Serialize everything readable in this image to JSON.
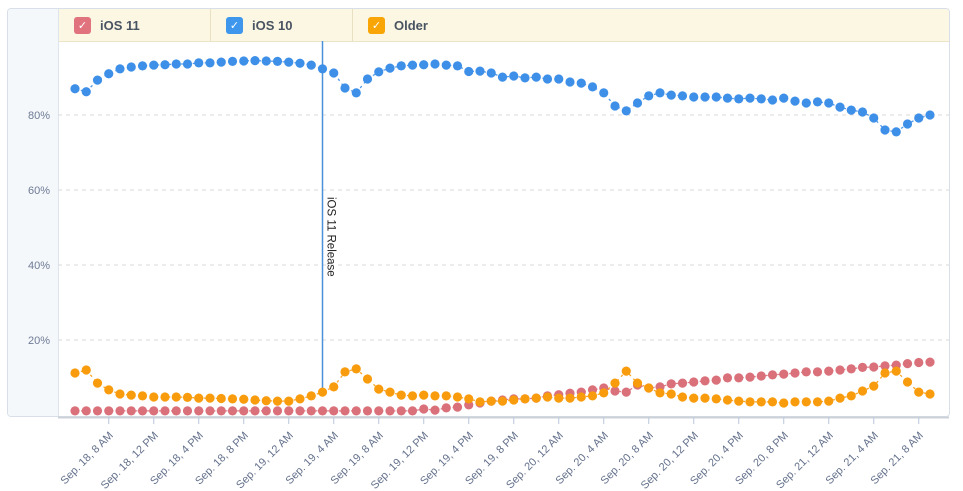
{
  "legend": {
    "items": [
      {
        "label": "iOS 11",
        "color": "#e1737e",
        "checked": true
      },
      {
        "label": "iOS 10",
        "color": "#3e97ed",
        "checked": true
      },
      {
        "label": "Older",
        "color": "#f8a505",
        "checked": true
      }
    ],
    "checkmark": "✓"
  },
  "chart_data": {
    "type": "line",
    "title": "",
    "xlabel": "",
    "ylabel": "",
    "ylim": [
      0,
      100
    ],
    "grid": true,
    "legend_position": "top",
    "point_interval_hours": 1,
    "n_points": 77,
    "yticks": {
      "values": [
        20,
        40,
        60,
        80
      ],
      "labels": [
        "20%",
        "40%",
        "60%",
        "80%"
      ]
    },
    "x_tick_indices": [
      3,
      7,
      11,
      15,
      19,
      23,
      27,
      31,
      35,
      39,
      43,
      47,
      51,
      55,
      59,
      63,
      67,
      71,
      75
    ],
    "x_tick_labels": [
      "Sep. 18, 8 AM",
      "Sep. 18, 12 PM",
      "Sep. 18, 4 PM",
      "Sep. 18, 8 PM",
      "Sep. 19, 12 AM",
      "Sep. 19, 4 AM",
      "Sep. 19, 8 AM",
      "Sep. 19, 12 PM",
      "Sep. 19, 4 PM",
      "Sep. 19, 8 PM",
      "Sep. 20, 12 AM",
      "Sep. 20, 4 AM",
      "Sep. 20, 8 AM",
      "Sep. 20, 12 PM",
      "Sep. 20, 4 PM",
      "Sep. 20, 8 PM",
      "Sep. 21, 12 AM",
      "Sep. 21, 4 AM",
      "Sep. 21, 8 AM"
    ],
    "annotation": {
      "label": "iOS 11 Release",
      "x_index": 22,
      "color": "#4a90da"
    },
    "series": [
      {
        "name": "iOS 11",
        "color": "#d9707a",
        "values": [
          1.1,
          1.1,
          1.1,
          1.1,
          1.1,
          1.1,
          1.1,
          1.1,
          1.1,
          1.1,
          1.1,
          1.1,
          1.1,
          1.1,
          1.1,
          1.1,
          1.1,
          1.1,
          1.1,
          1.1,
          1.1,
          1.1,
          1.1,
          1.1,
          1.1,
          1.1,
          1.1,
          1.1,
          1.1,
          1.1,
          1.1,
          1.6,
          1.3,
          1.9,
          2.1,
          2.7,
          3.2,
          3.7,
          4.0,
          4.3,
          4.3,
          4.5,
          5.1,
          5.4,
          5.8,
          6.1,
          6.7,
          7.2,
          6.4,
          6.1,
          8.0,
          7.2,
          7.5,
          8.3,
          8.5,
          8.8,
          9.1,
          9.3,
          9.9,
          9.9,
          10.1,
          10.4,
          10.7,
          10.9,
          11.2,
          11.5,
          11.5,
          11.7,
          12.0,
          12.3,
          12.7,
          12.8,
          13.1,
          13.3,
          13.7,
          14.0,
          14.1
        ]
      },
      {
        "name": "iOS 10",
        "color": "#3e8fe8",
        "values": [
          87.0,
          86.2,
          89.3,
          91.0,
          92.3,
          92.8,
          93.1,
          93.3,
          93.4,
          93.6,
          93.6,
          93.9,
          93.9,
          94.1,
          94.3,
          94.4,
          94.5,
          94.4,
          94.3,
          94.1,
          93.8,
          93.3,
          92.3,
          91.2,
          87.2,
          85.9,
          89.6,
          91.5,
          92.5,
          93.1,
          93.3,
          93.4,
          93.6,
          93.3,
          93.1,
          91.6,
          91.7,
          91.2,
          90.1,
          90.4,
          89.9,
          90.1,
          89.6,
          89.6,
          88.8,
          88.5,
          87.5,
          85.9,
          82.4,
          81.1,
          83.2,
          85.1,
          85.9,
          85.3,
          85.1,
          84.8,
          84.8,
          84.8,
          84.5,
          84.3,
          84.5,
          84.3,
          84.0,
          84.5,
          83.7,
          83.2,
          83.5,
          83.2,
          82.1,
          81.3,
          80.8,
          79.2,
          76.0,
          75.5,
          77.6,
          79.2,
          80.0
        ]
      },
      {
        "name": "Older",
        "color": "#f89c0e",
        "values": [
          11.2,
          12.0,
          8.5,
          6.7,
          5.6,
          5.3,
          5.1,
          4.8,
          4.8,
          4.8,
          4.7,
          4.5,
          4.5,
          4.4,
          4.3,
          4.2,
          4.0,
          3.8,
          3.7,
          3.7,
          4.3,
          5.1,
          6.1,
          7.5,
          11.5,
          12.3,
          9.6,
          6.9,
          6.1,
          5.3,
          5.1,
          5.3,
          5.1,
          5.1,
          4.8,
          4.3,
          3.5,
          3.7,
          3.7,
          4.0,
          4.3,
          4.5,
          4.8,
          4.5,
          4.5,
          4.8,
          5.1,
          5.9,
          8.5,
          11.7,
          8.5,
          7.2,
          5.9,
          5.6,
          4.8,
          4.5,
          4.5,
          4.3,
          4.0,
          3.7,
          3.5,
          3.5,
          3.5,
          3.2,
          3.5,
          3.5,
          3.5,
          3.7,
          4.5,
          5.1,
          6.4,
          7.7,
          11.2,
          11.7,
          8.8,
          6.1,
          5.6
        ]
      }
    ]
  }
}
